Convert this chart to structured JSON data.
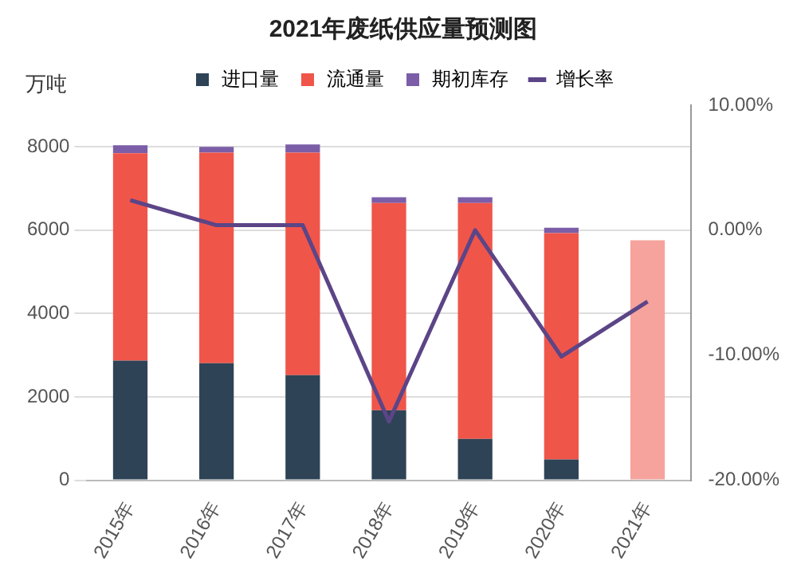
{
  "chart_data": {
    "type": "bar",
    "title": "2021年废纸供应量预测图",
    "ylabel": "万吨",
    "stacked": true,
    "legend": "top",
    "grid": "y",
    "categories": [
      "2015年",
      "2016年",
      "2017年",
      "2018年",
      "2019年",
      "2020年",
      "2021年"
    ],
    "ylim": [
      0,
      9000
    ],
    "yticks": [
      0,
      2000,
      4000,
      6000,
      8000
    ],
    "y2lim": [
      -20,
      10
    ],
    "y2ticks": [
      {
        "value": 10,
        "label": "10.00%"
      },
      {
        "value": 0,
        "label": "0.00%"
      },
      {
        "value": -10,
        "label": "-10.00%"
      },
      {
        "value": -20,
        "label": "-20.00%"
      }
    ],
    "series": [
      {
        "name": "进口量",
        "color": "#2e4355",
        "values": [
          2870,
          2810,
          2520,
          1680,
          990,
          500,
          null
        ]
      },
      {
        "name": "流通量",
        "color": "#f0554a",
        "colors": [
          "#f0554a",
          "#f0554a",
          "#f0554a",
          "#f0554a",
          "#f0554a",
          "#f0554a",
          "#f5a39c"
        ],
        "values": [
          4980,
          5050,
          5340,
          4970,
          5660,
          5430,
          5760
        ]
      },
      {
        "name": "期初库存",
        "color": "#7b5ea7",
        "values": [
          190,
          140,
          200,
          140,
          140,
          130,
          null
        ]
      },
      {
        "name": "增长率",
        "type": "line",
        "axis": "y2",
        "color": "#5b4587",
        "values": [
          2.4,
          0.4,
          0.4,
          -15.3,
          0,
          -10.1,
          -5.7
        ]
      }
    ]
  }
}
